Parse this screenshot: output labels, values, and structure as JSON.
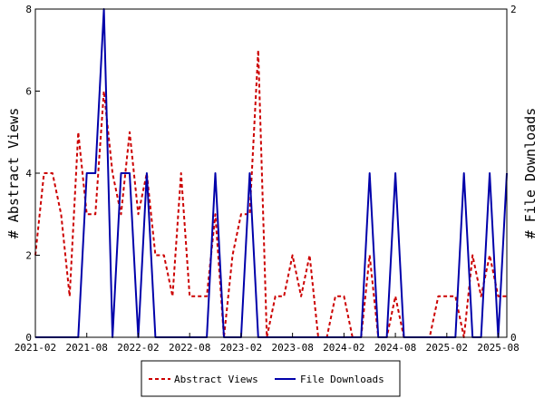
{
  "chart_data": {
    "type": "line",
    "xlabel": "",
    "x_tick_labels": [
      "2021-02",
      "2021-08",
      "2022-02",
      "2022-08",
      "2023-02",
      "2023-08",
      "2024-02",
      "2024-08",
      "2025-02",
      "2025-08"
    ],
    "x_tick_month_index": [
      0,
      6,
      12,
      18,
      24,
      30,
      36,
      42,
      48,
      54
    ],
    "x_range_months": [
      0,
      55
    ],
    "y_left": {
      "label": "# Abstract Views",
      "range": [
        0,
        8
      ],
      "ticks": [
        0,
        2,
        4,
        6,
        8
      ]
    },
    "y_right": {
      "label": "# File Downloads",
      "range": [
        0,
        2
      ],
      "ticks": [
        0,
        2
      ]
    },
    "series": [
      {
        "name": "Abstract Views",
        "axis": "left",
        "color": "#cc0000",
        "dash": "dashed",
        "values": [
          2,
          4,
          4,
          3,
          1,
          5,
          3,
          3,
          6,
          4,
          3,
          5,
          3,
          4,
          2,
          2,
          1,
          4,
          1,
          1,
          1,
          3,
          0,
          2,
          3,
          3,
          7,
          0,
          1,
          1,
          2,
          1,
          2,
          0,
          0,
          1,
          1,
          0,
          0,
          2,
          0,
          0,
          1,
          0,
          0,
          0,
          0,
          1,
          1,
          1,
          0,
          2,
          1,
          2,
          1,
          1
        ]
      },
      {
        "name": "File Downloads",
        "axis": "right",
        "color": "#0000aa",
        "dash": "solid",
        "values": [
          0,
          0,
          0,
          0,
          0,
          0,
          1,
          1,
          2,
          0,
          1,
          1,
          0,
          1,
          0,
          0,
          0,
          0,
          0,
          0,
          0,
          1,
          0,
          0,
          0,
          1,
          0,
          0,
          0,
          0,
          0,
          0,
          0,
          0,
          0,
          0,
          0,
          0,
          0,
          1,
          0,
          0,
          1,
          0,
          0,
          0,
          0,
          0,
          0,
          0,
          1,
          0,
          0,
          1,
          0,
          1
        ]
      }
    ],
    "legend": {
      "position": "bottom",
      "entries": [
        "Abstract Views",
        "File Downloads"
      ]
    },
    "grid": false
  }
}
